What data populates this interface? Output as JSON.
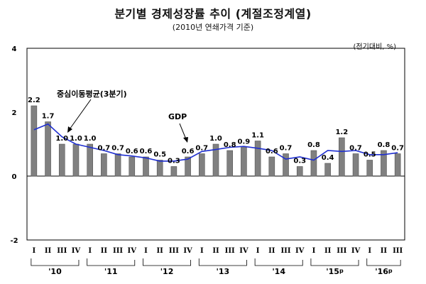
{
  "title": "분기별 경제성장률 추이 (계절조정계열)",
  "subtitle": "(2010년 연쇄가격 기준)",
  "unit": "(전기대비, %)",
  "colors": {
    "bar": "#808080",
    "line": "#1f2fd0",
    "frame": "#000000"
  },
  "chart_data": {
    "type": "bar",
    "categories": [
      "I",
      "II",
      "III",
      "IV",
      "I",
      "II",
      "III",
      "IV",
      "I",
      "II",
      "III",
      "IV",
      "I",
      "II",
      "III",
      "IV",
      "I",
      "II",
      "III",
      "IV",
      "I",
      "II",
      "III",
      "IV",
      "I",
      "II",
      "III"
    ],
    "years": [
      {
        "label": "'10"
      },
      {
        "label": "'11"
      },
      {
        "label": "'12"
      },
      {
        "label": "'13"
      },
      {
        "label": "'14"
      },
      {
        "label": "'15",
        "suffix": "p"
      },
      {
        "label": "'16",
        "suffix": "p"
      }
    ],
    "series": [
      {
        "name": "GDP",
        "type": "bar",
        "values": [
          2.2,
          1.7,
          1.0,
          1.0,
          1.0,
          0.7,
          0.7,
          0.6,
          0.6,
          0.5,
          0.3,
          0.6,
          0.7,
          1.0,
          0.8,
          0.9,
          1.1,
          0.6,
          0.7,
          0.3,
          0.8,
          0.4,
          1.2,
          0.7,
          0.5,
          0.8,
          0.7
        ]
      },
      {
        "name": "중심이동평균(3분기)",
        "type": "line",
        "values": [
          1.45,
          1.63,
          1.23,
          1.0,
          0.9,
          0.8,
          0.67,
          0.63,
          0.57,
          0.47,
          0.47,
          0.53,
          0.77,
          0.83,
          0.9,
          0.93,
          0.87,
          0.8,
          0.53,
          0.6,
          0.5,
          0.8,
          0.77,
          0.8,
          0.67,
          0.67,
          0.73
        ]
      }
    ],
    "value_labels": [
      "2.2",
      "1.7",
      "1.0",
      "1.0",
      "1.0",
      "0.7",
      "0.7",
      "0.6",
      "0.6",
      "0.5",
      "0.3",
      "0.6",
      "0.7",
      "1.0",
      "0.8",
      "0.9",
      "1.1",
      "0.6",
      "0.7",
      "0.3",
      "0.8",
      "0.4",
      "1.2",
      "0.7",
      "0.5",
      "0.8",
      "0.7"
    ],
    "yticks": [
      "-2",
      "0",
      "2",
      "4"
    ],
    "ylim": [
      -2,
      4
    ],
    "annotations": [
      "중심이동평균(3분기)",
      "GDP"
    ],
    "grid": false,
    "legend": "none"
  }
}
